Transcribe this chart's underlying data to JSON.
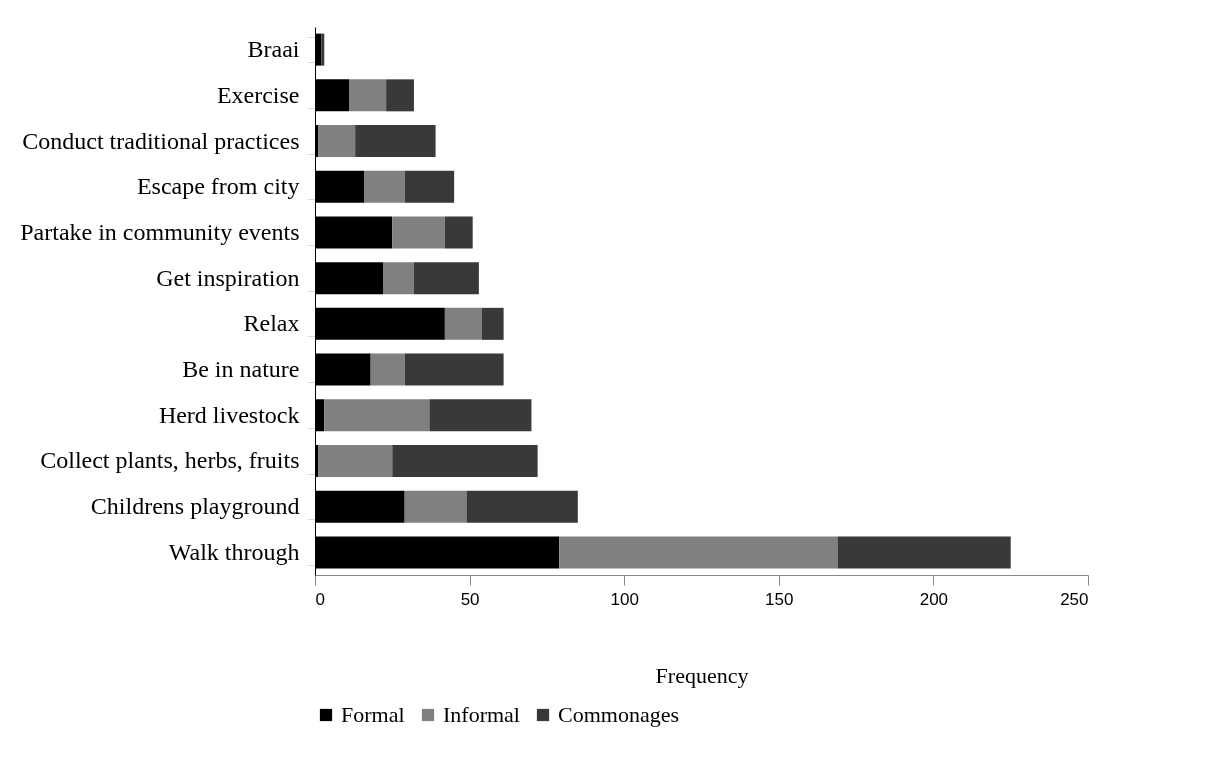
{
  "chart_data": {
    "type": "bar",
    "orientation": "horizontal",
    "stacked": true,
    "xlabel": "Frequency",
    "categories": [
      "Braai",
      "Exercise",
      "Conduct traditional practices",
      "Escape from city",
      "Partake in community events",
      "Get inspiration",
      "Relax",
      "Be in nature",
      "Herd livestock",
      "Collect plants, herbs, fruits",
      "Childrens playground",
      "Walk through"
    ],
    "series": [
      {
        "name": "Formal",
        "color": "#000000",
        "values": [
          2,
          11,
          1,
          16,
          25,
          22,
          42,
          18,
          3,
          1,
          29,
          79
        ]
      },
      {
        "name": "Informal",
        "color": "#808080",
        "values": [
          0,
          12,
          12,
          13,
          17,
          10,
          12,
          11,
          34,
          24,
          20,
          90
        ]
      },
      {
        "name": "Commonages",
        "color": "#3a3838",
        "values": [
          1,
          9,
          26,
          16,
          9,
          21,
          7,
          32,
          33,
          47,
          36,
          56
        ]
      }
    ],
    "xlim": [
      0,
      250
    ],
    "xticks": [
      0,
      50,
      100,
      150,
      200,
      250
    ],
    "grid": false,
    "legend": "bottom"
  }
}
